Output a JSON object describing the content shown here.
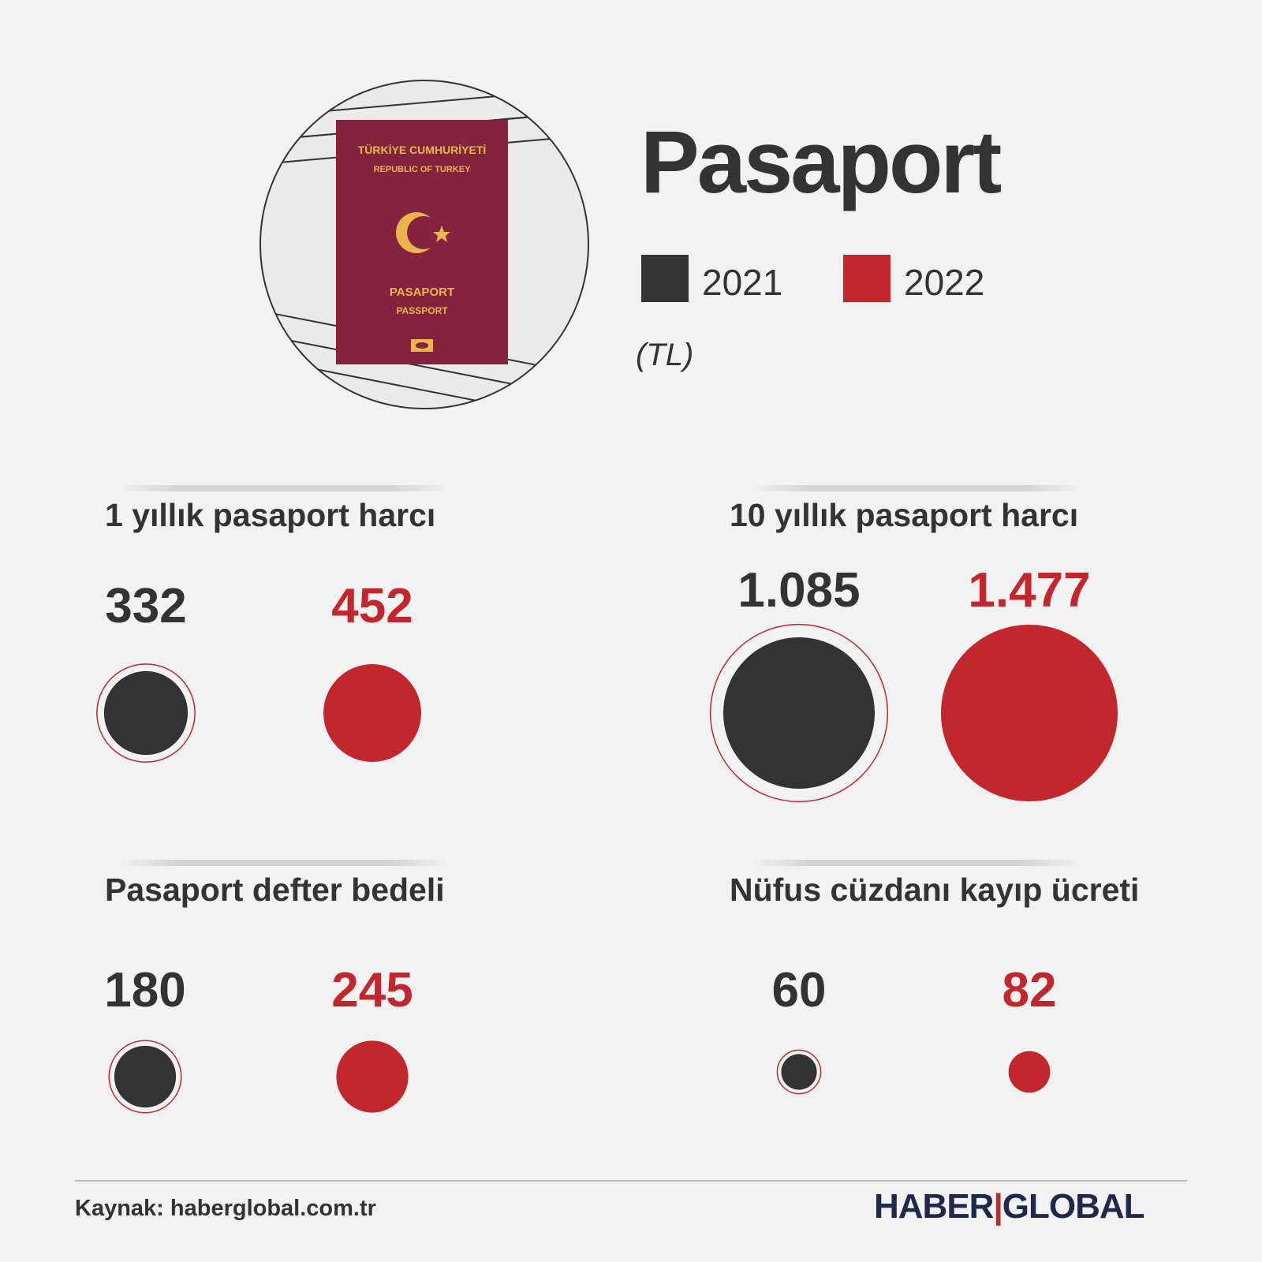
{
  "title": "Pasaport",
  "unit": "(TL)",
  "legend": [
    {
      "label": "2021",
      "color": "#333333"
    },
    {
      "label": "2022",
      "color": "#c1272d"
    }
  ],
  "passport": {
    "line1": "TÜRKİYE CUMHURİYETİ",
    "line2": "REPUBLIC OF TURKEY",
    "line3": "PASAPORT",
    "line4": "PASSPORT",
    "cover_color": "#85233f",
    "text_color": "#e8b64c"
  },
  "chart_data": {
    "type": "bubble",
    "unit": "TL",
    "series": [
      "2021",
      "2022"
    ],
    "panels": [
      {
        "title": "1 yıllık pasaport harcı",
        "values": [
          332,
          452
        ],
        "labels": [
          "332",
          "452"
        ]
      },
      {
        "title": "10 yıllık pasaport harcı",
        "values": [
          1085,
          1477
        ],
        "labels": [
          "1.085",
          "1.477"
        ]
      },
      {
        "title": "Pasaport defter bedeli",
        "values": [
          180,
          245
        ],
        "labels": [
          "180",
          "245"
        ]
      },
      {
        "title": "Nüfus cüzdanı kayıp ücreti",
        "values": [
          60,
          82
        ],
        "labels": [
          "60",
          "82"
        ]
      }
    ]
  },
  "footer": {
    "source": "Kaynak: haberglobal.com.tr",
    "brand_left": "HABER",
    "brand_sep": "|",
    "brand_right": "GLOBAL"
  }
}
